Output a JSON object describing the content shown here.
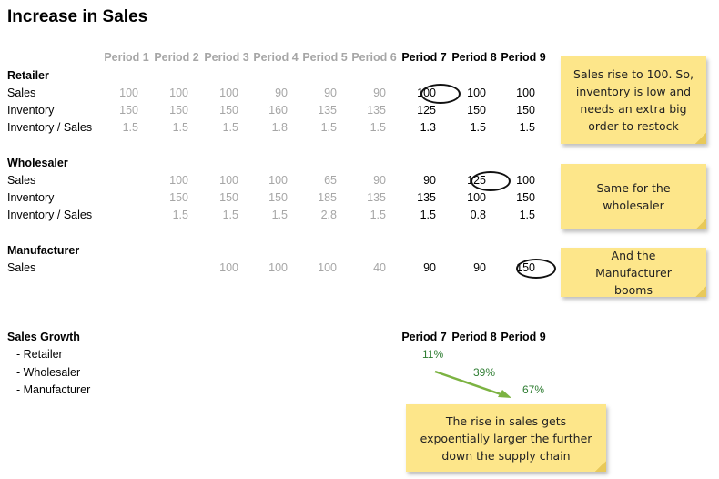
{
  "title": "Increase in Sales",
  "periods": [
    "Period 1",
    "Period 2",
    "Period 3",
    "Period 4",
    "Period 5",
    "Period 6",
    "Period 7",
    "Period 8",
    "Period 9"
  ],
  "retailer": {
    "heading": "Retailer",
    "rows": [
      {
        "label": "Sales",
        "values": [
          "100",
          "100",
          "100",
          "90",
          "90",
          "90",
          "100",
          "100",
          "100"
        ]
      },
      {
        "label": "Inventory",
        "values": [
          "150",
          "150",
          "150",
          "160",
          "135",
          "135",
          "125",
          "150",
          "150"
        ]
      },
      {
        "label": "Inventory / Sales",
        "values": [
          "1.5",
          "1.5",
          "1.5",
          "1.8",
          "1.5",
          "1.5",
          "1.3",
          "1.5",
          "1.5"
        ]
      }
    ]
  },
  "wholesaler": {
    "heading": "Wholesaler",
    "rows": [
      {
        "label": "Sales",
        "values": [
          "",
          "100",
          "100",
          "100",
          "65",
          "90",
          "90",
          "125",
          "100"
        ]
      },
      {
        "label": "Inventory",
        "values": [
          "",
          "150",
          "150",
          "150",
          "185",
          "135",
          "135",
          "100",
          "150"
        ]
      },
      {
        "label": "Inventory / Sales",
        "values": [
          "",
          "1.5",
          "1.5",
          "1.5",
          "2.8",
          "1.5",
          "1.5",
          "0.8",
          "1.5"
        ]
      }
    ]
  },
  "manufacturer": {
    "heading": "Manufacturer",
    "rows": [
      {
        "label": "Sales",
        "values": [
          "",
          "",
          "100",
          "100",
          "100",
          "40",
          "90",
          "90",
          "150"
        ]
      }
    ]
  },
  "growth": {
    "heading": "Sales Growth",
    "periods": [
      "Period 7",
      "Period 8",
      "Period 9"
    ],
    "items": [
      {
        "label": "- Retailer",
        "value": "11%"
      },
      {
        "label": "- Wholesaler",
        "value": "39%"
      },
      {
        "label": "- Manufacturer",
        "value": "67%"
      }
    ]
  },
  "notes": {
    "retailer": "Sales rise to 100. So, inventory is low and needs an extra big order to restock",
    "wholesaler": "Same for the wholesaler",
    "manufacturer": "And the Manufacturer booms",
    "growth": "The rise in sales gets expoentially larger the further down the supply chain"
  },
  "colors": {
    "note": "#fde68a",
    "greyText": "#a6a6a6",
    "growthText": "#2e7d32",
    "arrow": "#7cb342"
  }
}
